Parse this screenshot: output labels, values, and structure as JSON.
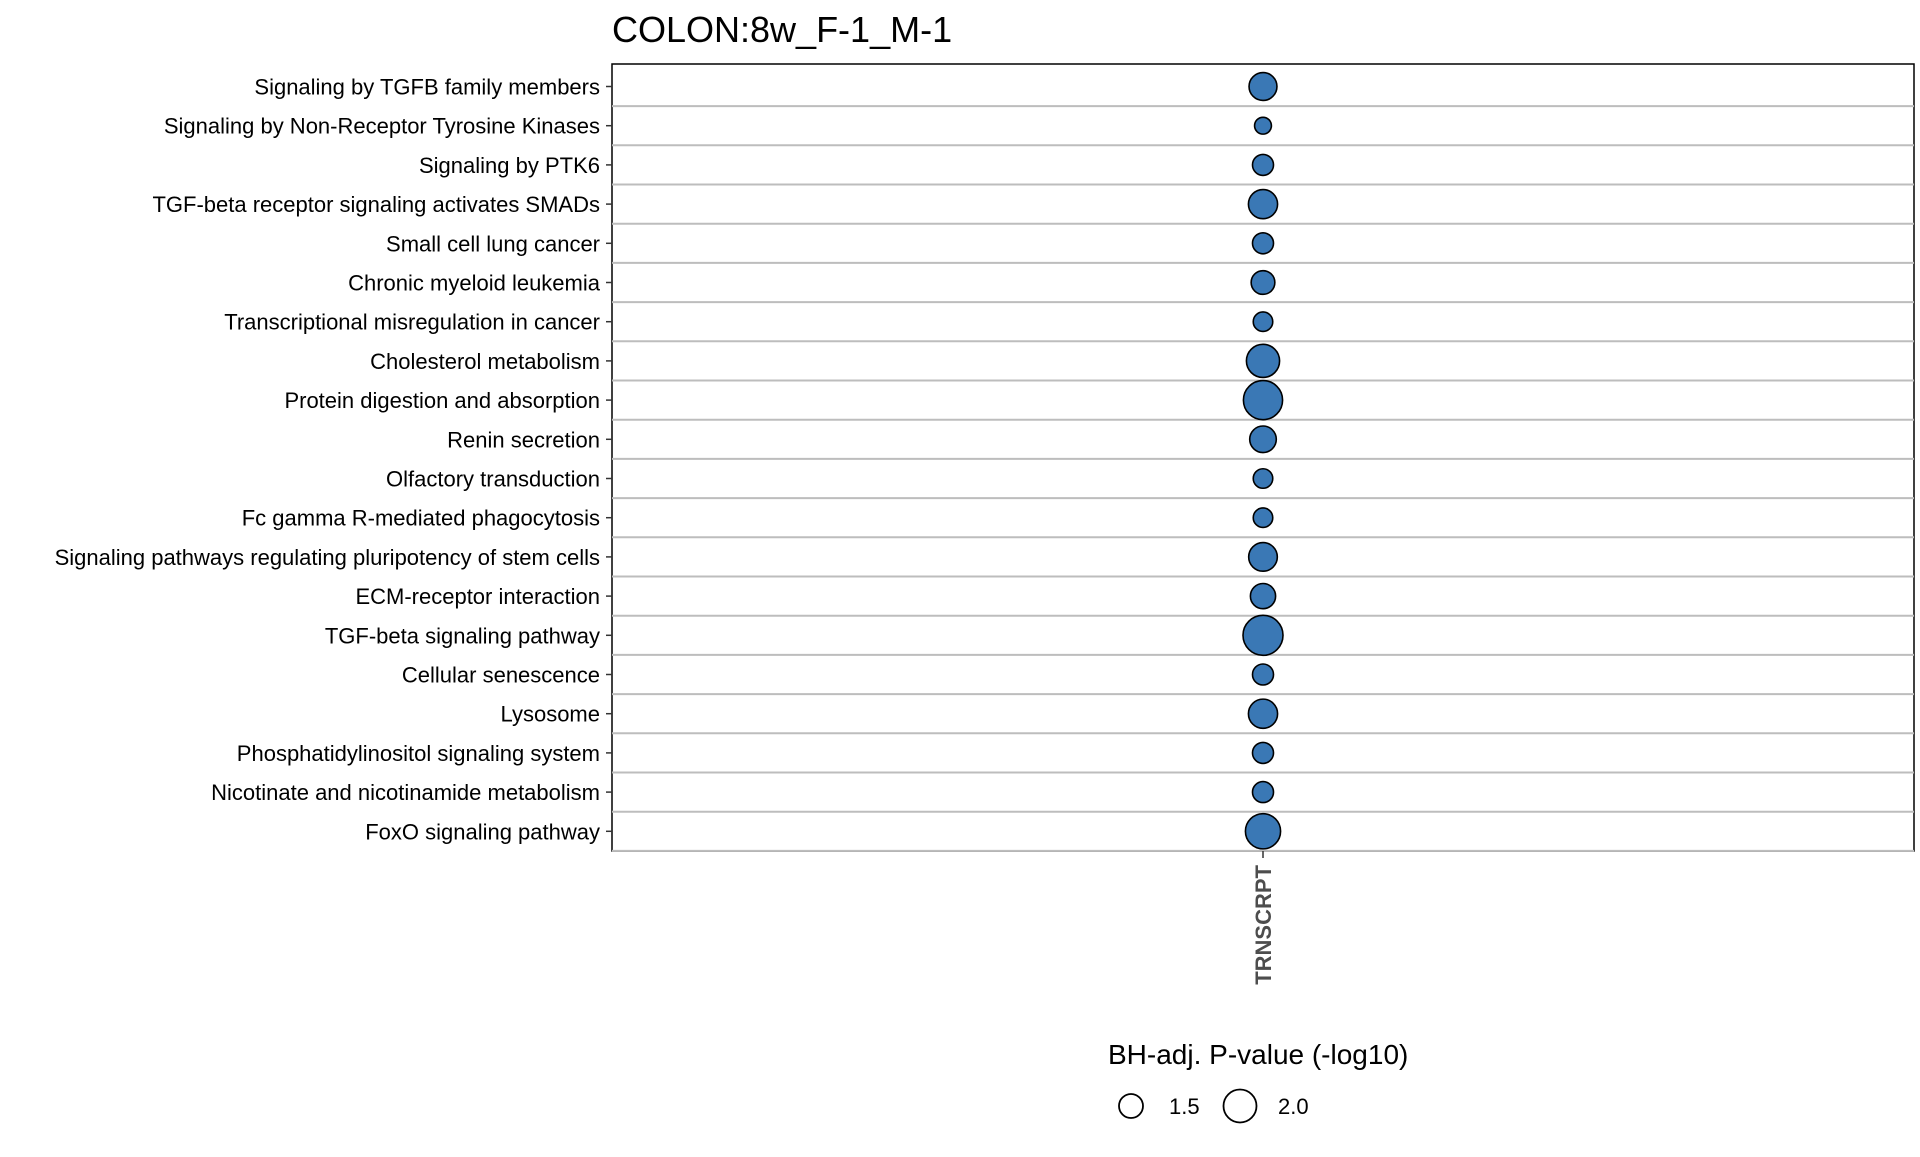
{
  "chart_data": {
    "type": "scatter",
    "title": "COLON:8w_F-1_M-1",
    "x_categories": [
      "TRNSCRPT"
    ],
    "categories": [
      "Signaling by TGFB family members",
      "Signaling by Non-Receptor Tyrosine Kinases",
      "Signaling by PTK6",
      "TGF-beta receptor signaling activates SMADs",
      "Small cell lung cancer",
      "Chronic myeloid leukemia",
      "Transcriptional misregulation in cancer",
      "Cholesterol metabolism",
      "Protein digestion and absorption",
      "Renin secretion",
      "Olfactory transduction",
      "Fc gamma R-mediated phagocytosis",
      "Signaling pathways regulating pluripotency of stem cells",
      "ECM-receptor interaction",
      "TGF-beta signaling pathway",
      "Cellular senescence",
      "Lysosome",
      "Phosphatidylinositol signaling system",
      "Nicotinate and nicotinamide metabolism",
      "FoxO signaling pathway"
    ],
    "values": [
      1.65,
      1.32,
      1.42,
      1.7,
      1.42,
      1.5,
      1.38,
      1.88,
      2.2,
      1.6,
      1.38,
      1.38,
      1.68,
      1.55,
      2.25,
      1.42,
      1.7,
      1.42,
      1.42,
      1.98
    ],
    "size_legend": {
      "title": "BH-adj. P-value (-log10)",
      "values": [
        1.5,
        2.0
      ],
      "labels": [
        "1.5",
        "2.0"
      ]
    },
    "point_color": "#3a78b5",
    "point_stroke": "#000000",
    "grid": true,
    "legend_position": "bottom"
  }
}
